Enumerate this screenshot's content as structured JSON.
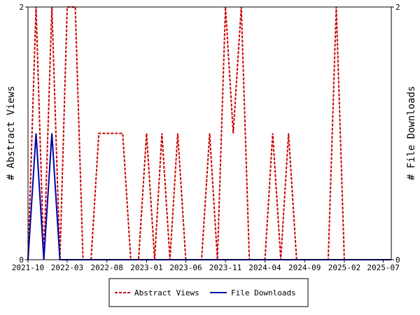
{
  "chart_data": {
    "type": "line",
    "title": "",
    "ylabel_left": "# Abstract Views",
    "ylabel_right": "# File Downloads",
    "ylim_left": [
      0,
      2
    ],
    "ylim_right": [
      0,
      2
    ],
    "xlim": [
      "2021-10-01",
      "2025-08-01"
    ],
    "grid": false,
    "legend_position": "bottom-center",
    "x_tick_labels": [
      "2021-10",
      "2022-03",
      "2022-08",
      "2023-01",
      "2023-06",
      "2023-11",
      "2024-04",
      "2024-09",
      "2025-02",
      "2025-07"
    ],
    "y_tick_labels_left": [
      "0",
      "2"
    ],
    "y_tick_labels_right": [
      "0",
      "2"
    ],
    "series": [
      {
        "name": "Abstract Views",
        "color": "#cc0000",
        "style": "dashed",
        "axis": "left",
        "x": [
          "2021-10-01",
          "2021-11-01",
          "2021-12-01",
          "2022-01-01",
          "2022-02-01",
          "2022-03-01",
          "2022-04-01",
          "2022-05-01",
          "2022-06-01",
          "2022-07-01",
          "2022-08-01",
          "2022-09-01",
          "2022-10-01",
          "2022-11-01",
          "2022-12-01",
          "2023-01-01",
          "2023-02-01",
          "2023-03-01",
          "2023-04-01",
          "2023-05-01",
          "2023-06-01",
          "2023-07-01",
          "2023-08-01",
          "2023-09-01",
          "2023-10-01",
          "2023-11-01",
          "2023-12-01",
          "2024-01-01",
          "2024-02-01",
          "2024-03-01",
          "2024-04-01",
          "2024-05-01",
          "2024-06-01",
          "2024-07-01",
          "2024-08-01",
          "2024-09-01",
          "2024-10-01",
          "2024-11-01",
          "2024-12-01",
          "2025-01-01",
          "2025-02-01",
          "2025-03-01",
          "2025-04-01",
          "2025-05-01",
          "2025-06-01",
          "2025-07-01",
          "2025-08-01"
        ],
        "values": [
          0,
          2,
          0,
          2,
          0,
          2,
          2,
          0,
          0,
          1,
          1,
          1,
          1,
          0,
          0,
          1,
          0,
          1,
          0,
          1,
          0,
          0,
          0,
          1,
          0,
          2,
          1,
          2,
          0,
          0,
          0,
          1,
          0,
          1,
          0,
          0,
          0,
          0,
          0,
          2,
          0,
          0,
          0,
          0,
          0,
          0,
          0
        ]
      },
      {
        "name": "File Downloads",
        "color": "#0000aa",
        "style": "solid",
        "axis": "right",
        "x": [
          "2021-10-01",
          "2021-11-01",
          "2021-12-01",
          "2022-01-01",
          "2022-02-01",
          "2022-03-01",
          "2025-08-01"
        ],
        "values": [
          0,
          1,
          0,
          1,
          0,
          0,
          0
        ]
      }
    ]
  }
}
